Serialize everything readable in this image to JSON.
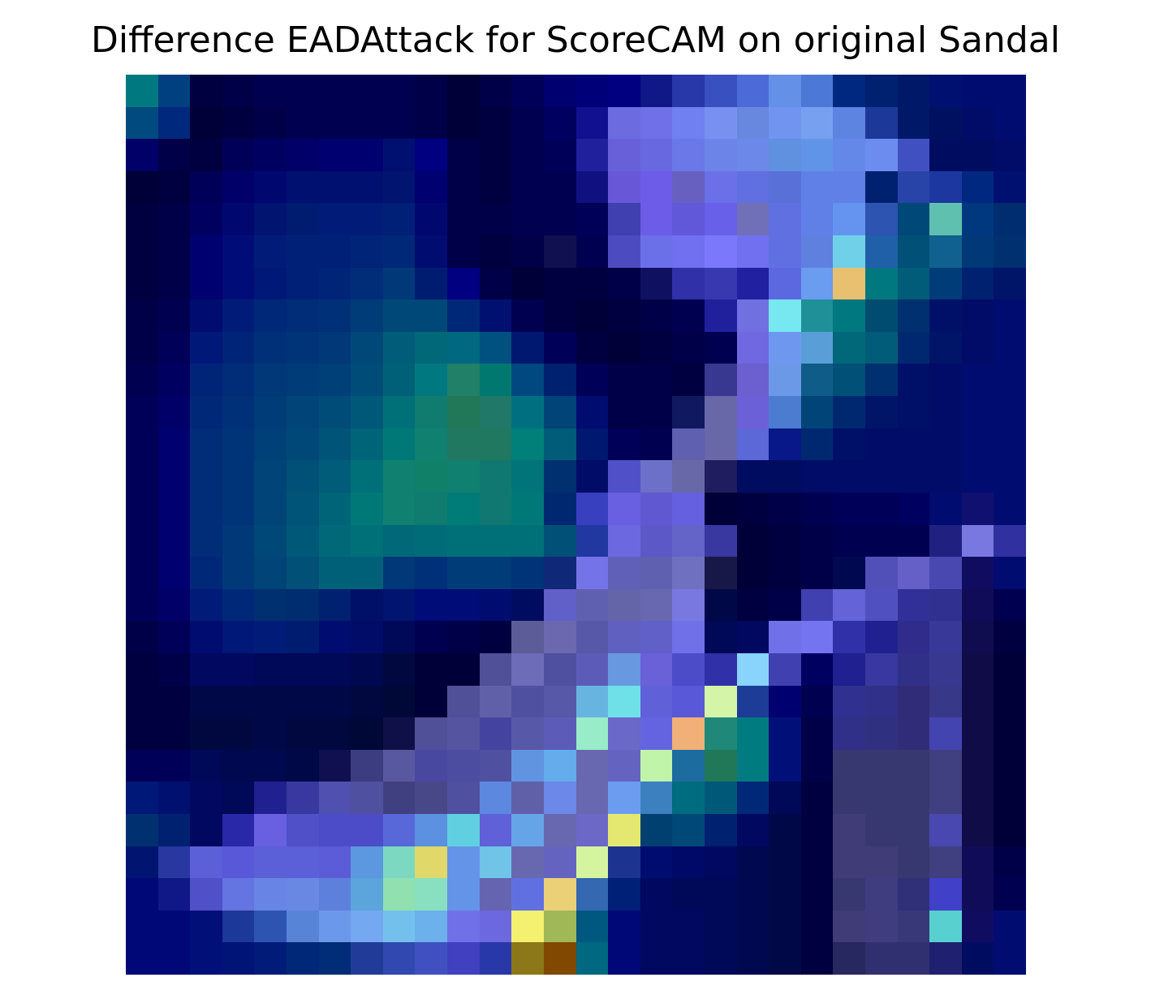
{
  "title": "Difference EADAttack for ScoreCAM on original Sandal",
  "image": {
    "grid_size": 28,
    "rows": [
      [
        "#007880",
        "#004080",
        "#000040",
        "#000048",
        "#000050",
        "#000050",
        "#000050",
        "#000050",
        "#000050",
        "#000048",
        "#000038",
        "#000048",
        "#000058",
        "#000070",
        "#000078",
        "#000080",
        "#101888",
        "#2838a8",
        "#3850c0",
        "#4c6ad8",
        "#6490e8",
        "#4c78d8",
        "#002880",
        "#002070",
        "#001868",
        "#001070",
        "#000c70",
        "#000c70"
      ],
      [
        "#004a80",
        "#00287c",
        "#000038",
        "#000040",
        "#000048",
        "#000050",
        "#000050",
        "#000050",
        "#000050",
        "#000048",
        "#000038",
        "#000040",
        "#000050",
        "#000060",
        "#101090",
        "#6c6ce0",
        "#7070e8",
        "#7080f0",
        "#7890f0",
        "#6888e0",
        "#7094f0",
        "#78a0f0",
        "#5c84e0",
        "#1c3898",
        "#001868",
        "#001060",
        "#000c68",
        "#000c70"
      ],
      [
        "#000068",
        "#000048",
        "#000040",
        "#000058",
        "#000060",
        "#000068",
        "#000070",
        "#000070",
        "#001070",
        "#000080",
        "#000048",
        "#000040",
        "#000050",
        "#000058",
        "#20209c",
        "#6860d8",
        "#6868e0",
        "#6a78e8",
        "#6c84e8",
        "#6c88e8",
        "#6090e0",
        "#6094e8",
        "#6488e8",
        "#6c8cf0",
        "#4050c0",
        "#000c60",
        "#000c60",
        "#000c68"
      ],
      [
        "#000038",
        "#000040",
        "#000058",
        "#000068",
        "#000870",
        "#001070",
        "#001070",
        "#001070",
        "#001470",
        "#000070",
        "#000048",
        "#000040",
        "#000050",
        "#000050",
        "#101080",
        "#6858d8",
        "#6c5ce8",
        "#6860c0",
        "#6c70e8",
        "#6070e0",
        "#5870d8",
        "#6080e8",
        "#6080e8",
        "#002070",
        "#2844a8",
        "#1c38a0",
        "#002880",
        "#001070"
      ],
      [
        "#000040",
        "#000048",
        "#000060",
        "#000870",
        "#001470",
        "#001c70",
        "#001c78",
        "#001c78",
        "#002078",
        "#000870",
        "#000048",
        "#000048",
        "#000050",
        "#000050",
        "#000058",
        "#4040b0",
        "#6c5ce8",
        "#6058d8",
        "#6860e8",
        "#7070b8",
        "#6070e0",
        "#6080e8",
        "#6494f0",
        "#2c54b0",
        "#004878",
        "#60c0b0",
        "#003880",
        "#002c70"
      ],
      [
        "#000040",
        "#000048",
        "#000070",
        "#000c78",
        "#001c78",
        "#002078",
        "#002078",
        "#002478",
        "#002878",
        "#000c70",
        "#000048",
        "#000040",
        "#000048",
        "#101050",
        "#000050",
        "#4c4cc0",
        "#6c70e8",
        "#7070f0",
        "#7c78fc",
        "#7070f0",
        "#6070e0",
        "#6080e0",
        "#70d0e8",
        "#2060a8",
        "#005078",
        "#106090",
        "#003878",
        "#003070"
      ],
      [
        "#000040",
        "#000048",
        "#000070",
        "#000c78",
        "#001878",
        "#002078",
        "#002478",
        "#002c78",
        "#003878",
        "#001c70",
        "#000080",
        "#000048",
        "#000038",
        "#000040",
        "#000040",
        "#000048",
        "#101060",
        "#3030a8",
        "#3838b0",
        "#2020a0",
        "#5c68e0",
        "#6a9cf0",
        "#e8c070",
        "#007880",
        "#005c78",
        "#003c78",
        "#002070",
        "#001468"
      ],
      [
        "#000048",
        "#000050",
        "#000c70",
        "#001c78",
        "#002878",
        "#002c78",
        "#003078",
        "#003c78",
        "#004878",
        "#004878",
        "#002878",
        "#001070",
        "#000050",
        "#000040",
        "#000038",
        "#000040",
        "#000048",
        "#000050",
        "#20209c",
        "#7070e0",
        "#78e8f0",
        "#209098",
        "#007880",
        "#004c70",
        "#003070",
        "#001068",
        "#000c68",
        "#000c70"
      ],
      [
        "#000048",
        "#000058",
        "#001878",
        "#002478",
        "#003078",
        "#003478",
        "#003878",
        "#004878",
        "#005c78",
        "#006878",
        "#006880",
        "#005080",
        "#001870",
        "#000058",
        "#000040",
        "#000038",
        "#000040",
        "#000048",
        "#000050",
        "#7068e0",
        "#6e98f0",
        "#5a9ed8",
        "#006878",
        "#005c78",
        "#002870",
        "#001468",
        "#000c68",
        "#000c70"
      ],
      [
        "#000050",
        "#000060",
        "#002478",
        "#002c78",
        "#003878",
        "#003c78",
        "#004078",
        "#004c78",
        "#006078",
        "#007880",
        "#208068",
        "#007870",
        "#004880",
        "#002070",
        "#000058",
        "#000048",
        "#000048",
        "#000040",
        "#383890",
        "#6c60d0",
        "#6c98e8",
        "#105c88",
        "#005078",
        "#003070",
        "#001068",
        "#000c68",
        "#000c70",
        "#000c70"
      ],
      [
        "#000058",
        "#000068",
        "#002878",
        "#003078",
        "#003c78",
        "#004478",
        "#004c78",
        "#005878",
        "#007078",
        "#107c70",
        "#207858",
        "#207868",
        "#007080",
        "#004478",
        "#000c70",
        "#000048",
        "#000048",
        "#101860",
        "#6868a8",
        "#6c60d8",
        "#4c7cd0",
        "#004478",
        "#002870",
        "#001468",
        "#001068",
        "#000c68",
        "#000c70",
        "#000c70"
      ],
      [
        "#000058",
        "#000070",
        "#002c78",
        "#003478",
        "#004078",
        "#004878",
        "#005478",
        "#006478",
        "#007878",
        "#108070",
        "#207860",
        "#207860",
        "#008078",
        "#005c78",
        "#001870",
        "#000058",
        "#000050",
        "#6060b0",
        "#6868a8",
        "#5c68d8",
        "#081888",
        "#002870",
        "#001068",
        "#000c68",
        "#000c68",
        "#000c68",
        "#000c70",
        "#000c70"
      ],
      [
        "#000058",
        "#000070",
        "#002c78",
        "#003478",
        "#004478",
        "#005078",
        "#005c78",
        "#007078",
        "#108070",
        "#108068",
        "#108070",
        "#107870",
        "#007478",
        "#003070",
        "#000c68",
        "#5050c8",
        "#6c70c8",
        "#6868a8",
        "#201c60",
        "#000c60",
        "#000c60",
        "#000c68",
        "#000c68",
        "#000c68",
        "#000c68",
        "#000c68",
        "#000c70",
        "#000c70"
      ],
      [
        "#000058",
        "#000070",
        "#002c78",
        "#003478",
        "#004478",
        "#005478",
        "#006478",
        "#007878",
        "#108070",
        "#107c70",
        "#007c78",
        "#107870",
        "#007878",
        "#002870",
        "#3840c0",
        "#6860e0",
        "#6058d0",
        "#6460e0",
        "#000038",
        "#000040",
        "#000048",
        "#000050",
        "#000058",
        "#000058",
        "#000060",
        "#000c70",
        "#101070",
        "#000c70"
      ],
      [
        "#000058",
        "#000070",
        "#002c78",
        "#003878",
        "#004878",
        "#005878",
        "#006878",
        "#007078",
        "#006878",
        "#006c78",
        "#007078",
        "#007078",
        "#007078",
        "#005078",
        "#2038a0",
        "#6c68e0",
        "#5c58c8",
        "#6464c8",
        "#3838a0",
        "#000038",
        "#000040",
        "#000048",
        "#000050",
        "#000050",
        "#000050",
        "#202080",
        "#7878e0",
        "#3030a0"
      ],
      [
        "#000058",
        "#000070",
        "#002878",
        "#003878",
        "#004478",
        "#005078",
        "#006078",
        "#006078",
        "#003878",
        "#003078",
        "#003c78",
        "#003c78",
        "#003478",
        "#102878",
        "#7474e8",
        "#6060b8",
        "#6060b0",
        "#7070c0",
        "#181848",
        "#000038",
        "#000040",
        "#000048",
        "#000850",
        "#5050b8",
        "#6460c8",
        "#4848b0",
        "#100c60",
        "#000c70"
      ],
      [
        "#000058",
        "#000068",
        "#001c78",
        "#002878",
        "#003070",
        "#002c70",
        "#002070",
        "#001068",
        "#001470",
        "#000c78",
        "#000c78",
        "#000c70",
        "#000c60",
        "#6060c8",
        "#6060b0",
        "#6464a8",
        "#6868b0",
        "#7878e0",
        "#000848",
        "#000040",
        "#000048",
        "#4040b0",
        "#6464d8",
        "#5050c0",
        "#303098",
        "#303090",
        "#100c58",
        "#000050"
      ],
      [
        "#000048",
        "#000058",
        "#000c70",
        "#001878",
        "#001c78",
        "#001c70",
        "#000c70",
        "#000c68",
        "#000858",
        "#000050",
        "#000048",
        "#000040",
        "#5c5c98",
        "#6c68b0",
        "#5858a8",
        "#6060c0",
        "#6060c8",
        "#7070e8",
        "#000858",
        "#000860",
        "#7070e8",
        "#7474f0",
        "#3030a8",
        "#202090",
        "#302c8c",
        "#383898",
        "#100c50",
        "#000040"
      ],
      [
        "#000040",
        "#000048",
        "#000860",
        "#000860",
        "#000858",
        "#000858",
        "#000858",
        "#000850",
        "#000840",
        "#000038",
        "#000038",
        "#505098",
        "#6c6cb8",
        "#5050a0",
        "#5c5cb8",
        "#6898e0",
        "#6a60d8",
        "#4c4cc8",
        "#3030a8",
        "#88d4fc",
        "#4040b0",
        "#000060",
        "#202090",
        "#3838a0",
        "#303088",
        "#383890",
        "#100c48",
        "#000038"
      ],
      [
        "#000040",
        "#000040",
        "#000848",
        "#000848",
        "#000848",
        "#000848",
        "#000848",
        "#000840",
        "#000838",
        "#000038",
        "#505098",
        "#6060a8",
        "#5050a0",
        "#5858a8",
        "#68b4e0",
        "#70e0e8",
        "#6060d8",
        "#5858d8",
        "#d4f4a8",
        "#1c3c98",
        "#000070",
        "#000050",
        "#303090",
        "#303088",
        "#302c78",
        "#383888",
        "#100c48",
        "#000038"
      ],
      [
        "#000040",
        "#000040",
        "#000840",
        "#000840",
        "#000848",
        "#000840",
        "#000840",
        "#000838",
        "#101048",
        "#505098",
        "#5454a0",
        "#4444a0",
        "#5858a8",
        "#5c5cb8",
        "#98ecc8",
        "#6a68c8",
        "#6464e0",
        "#f0b078",
        "#208878",
        "#007c80",
        "#001078",
        "#000048",
        "#303088",
        "#303080",
        "#302c78",
        "#4444b0",
        "#100c48",
        "#000038"
      ],
      [
        "#000058",
        "#000058",
        "#000858",
        "#000850",
        "#000850",
        "#000848",
        "#101050",
        "#3c3c80",
        "#5858a0",
        "#4848a0",
        "#4c4ca0",
        "#5050a0",
        "#6094e0",
        "#64acec",
        "#6868b0",
        "#6464c0",
        "#c0f4a8",
        "#1c6ca0",
        "#207858",
        "#007c80",
        "#001078",
        "#000048",
        "#383870",
        "#383870",
        "#383870",
        "#404080",
        "#100c48",
        "#000038"
      ],
      [
        "#001878",
        "#001070",
        "#000860",
        "#000858",
        "#202090",
        "#3838a0",
        "#5050b0",
        "#5050a0",
        "#404080",
        "#484888",
        "#5050a0",
        "#5c88e0",
        "#6060a8",
        "#6c88e8",
        "#6868b0",
        "#6c9cf0",
        "#3c80c0",
        "#006c80",
        "#005878",
        "#002878",
        "#000858",
        "#000040",
        "#383870",
        "#383870",
        "#383870",
        "#404080",
        "#100c48",
        "#000038"
      ],
      [
        "#003070",
        "#002070",
        "#000860",
        "#2828a8",
        "#6860e0",
        "#5050c8",
        "#4c4cc8",
        "#4c4cc8",
        "#5868d8",
        "#5c90e0",
        "#60d0e0",
        "#6060d8",
        "#66a4e8",
        "#6868b0",
        "#6c68c8",
        "#e4e870",
        "#004070",
        "#004878",
        "#002070",
        "#000860",
        "#000848",
        "#000040",
        "#403c78",
        "#383870",
        "#383870",
        "#4848b0",
        "#100c48",
        "#000038"
      ],
      [
        "#001470",
        "#2838a0",
        "#5c60d8",
        "#5858d8",
        "#5c60d8",
        "#5c60d8",
        "#5c5cd8",
        "#5c98e0",
        "#7cd8c0",
        "#e0d868",
        "#6494e8",
        "#70c4e8",
        "#6868b0",
        "#6464c0",
        "#d4f4a0",
        "#1c3490",
        "#000c70",
        "#000868",
        "#000860",
        "#000850",
        "#000848",
        "#000040",
        "#403c78",
        "#403c78",
        "#383870",
        "#404080",
        "#100c58",
        "#000048"
      ],
      [
        "#000878",
        "#101888",
        "#5050c8",
        "#6474e0",
        "#6884e4",
        "#6888e4",
        "#5c80dc",
        "#5ca4dc",
        "#90e0b0",
        "#88e0c0",
        "#6494e8",
        "#6464b0",
        "#6070e0",
        "#ecd078",
        "#3468b0",
        "#002078",
        "#000860",
        "#000858",
        "#000858",
        "#000850",
        "#000848",
        "#000040",
        "#383870",
        "#403c80",
        "#303078",
        "#4040c8",
        "#100c58",
        "#000050"
      ],
      [
        "#000878",
        "#000878",
        "#001078",
        "#1c3898",
        "#2c54b0",
        "#5884d8",
        "#6c98ec",
        "#74a8f0",
        "#74c0ec",
        "#6cb0ec",
        "#7070e8",
        "#6c68e0",
        "#f4f070",
        "#a0b858",
        "#005880",
        "#000878",
        "#000860",
        "#000860",
        "#000858",
        "#000850",
        "#000848",
        "#000040",
        "#403c78",
        "#403c80",
        "#383878",
        "#58d0d0",
        "#100c60",
        "#000c70"
      ],
      [
        "#000878",
        "#000878",
        "#001078",
        "#001478",
        "#001c78",
        "#002878",
        "#002c78",
        "#203c98",
        "#3048b0",
        "#4050c0",
        "#4040c0",
        "#2838a8",
        "#8c7818",
        "#804800",
        "#006880",
        "#000878",
        "#000860",
        "#000860",
        "#000858",
        "#000850",
        "#000848",
        "#000040",
        "#282860",
        "#303070",
        "#303070",
        "#202070",
        "#000c60",
        "#000c70"
      ]
    ]
  }
}
